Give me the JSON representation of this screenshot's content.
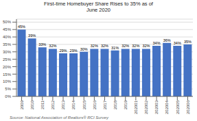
{
  "chart_data": {
    "type": "bar",
    "title": "First-time Homebuyer Share Rises to 35% as of\nJune 2020",
    "categories": [
      "2009",
      "2010",
      "2011",
      "2012",
      "2013",
      "2014",
      "2015",
      "2016",
      "2017",
      "2018",
      "2019",
      "202001",
      "202002",
      "202003",
      "202004",
      "202005",
      "202006"
    ],
    "values": [
      45,
      39,
      33,
      32,
      29,
      29,
      30,
      32,
      32,
      31,
      32,
      32,
      32,
      34,
      36,
      34,
      35
    ],
    "value_labels": [
      "45%",
      "39%",
      "33%",
      "32%",
      "29%",
      "29%",
      "30%",
      "32%",
      "32%",
      "31%",
      "32%",
      "32%",
      "32%",
      "34%",
      "36%",
      "34%",
      "35%"
    ],
    "data_labels": true,
    "color": "#4472C4",
    "ylim": [
      0,
      52
    ],
    "yticks": [
      {
        "value": 0,
        "label": "0%"
      },
      {
        "value": 5,
        "label": "5%"
      },
      {
        "value": 10,
        "label": "10%"
      },
      {
        "value": 15,
        "label": "15%"
      },
      {
        "value": 20,
        "label": "20%"
      },
      {
        "value": 25,
        "label": "25%"
      },
      {
        "value": 30,
        "label": "30%"
      },
      {
        "value": 35,
        "label": "35%"
      },
      {
        "value": 40,
        "label": "40%"
      },
      {
        "value": 45,
        "label": "45%"
      },
      {
        "value": 50,
        "label": "50%"
      }
    ],
    "grid": true,
    "annotations": [
      "Source: National Association of Realtors® RCI Survey"
    ]
  }
}
